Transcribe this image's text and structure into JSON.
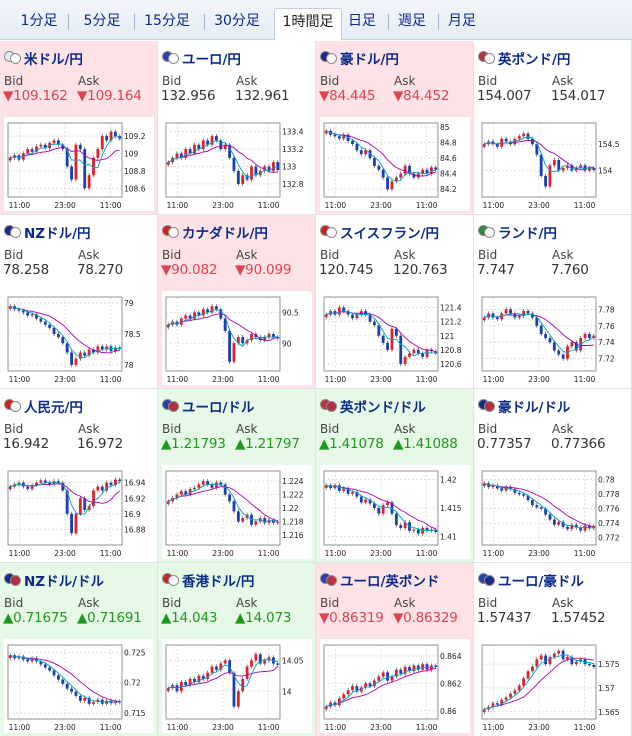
{
  "tabs": [
    {
      "label": "1分足",
      "active": false
    },
    {
      "label": "5分足",
      "active": false
    },
    {
      "label": "15分足",
      "active": false
    },
    {
      "label": "30分足",
      "active": false
    },
    {
      "label": "1時間足",
      "active": true
    },
    {
      "label": "日足",
      "active": false
    },
    {
      "label": "週足",
      "active": false
    },
    {
      "label": "月足",
      "active": false
    }
  ],
  "bid_label": "Bid",
  "ask_label": "Ask",
  "colors": {
    "down_bg": "#fde3e6",
    "up_bg": "#e6f8e6",
    "down_text": "#e0434f",
    "up_text": "#1d9a1d",
    "link": "#0a2a8a",
    "ma_long": "#b000b0",
    "ma_short": "#00a0c8",
    "candle_up": "#e0202a",
    "candle_down": "#1a3fb0"
  },
  "x_ticks": [
    "11:00",
    "23:00",
    "11:00"
  ],
  "pairs": [
    {
      "name": "米ドル/円",
      "flags": [
        "#e8e8f8",
        "#ffffff"
      ],
      "state": "down",
      "bid": "▼109.162",
      "ask": "▼109.164",
      "chart_data": {
        "type": "candlestick",
        "yticks": [
          "109.2",
          "109",
          "108.8",
          "108.6"
        ],
        "ylim": [
          108.5,
          109.35
        ],
        "series": [
          108.95,
          108.98,
          108.93,
          109.0,
          109.05,
          109.02,
          109.08,
          109.1,
          109.06,
          109.12,
          109.15,
          109.1,
          109.05,
          108.85,
          108.7,
          109.1,
          109.05,
          108.6,
          108.75,
          108.95,
          109.05,
          109.2,
          109.15,
          109.25,
          109.2,
          109.17
        ]
      }
    },
    {
      "name": "ユーロ/円",
      "flags": [
        "#2a3fb0",
        "#ffffff"
      ],
      "state": "neutral",
      "bid": "132.956",
      "ask": "132.961",
      "chart_data": {
        "type": "candlestick",
        "yticks": [
          "133.4",
          "133.2",
          "133",
          "132.8"
        ],
        "ylim": [
          132.65,
          133.5
        ],
        "series": [
          133.05,
          133.1,
          133.15,
          133.1,
          133.2,
          133.15,
          133.25,
          133.2,
          133.3,
          133.25,
          133.35,
          133.3,
          133.2,
          133.25,
          133.1,
          132.95,
          132.8,
          132.9,
          132.85,
          133.0,
          132.9,
          132.95,
          133.0,
          132.95,
          133.05,
          132.96
        ]
      }
    },
    {
      "name": "豪ドル/円",
      "flags": [
        "#1a2a8a",
        "#ffffff"
      ],
      "state": "down",
      "bid": "▼84.445",
      "ask": "▼84.452",
      "chart_data": {
        "type": "candlestick",
        "yticks": [
          "85",
          "84.8",
          "84.6",
          "84.4",
          "84.2"
        ],
        "ylim": [
          84.1,
          85.05
        ],
        "series": [
          84.95,
          84.9,
          84.88,
          84.85,
          84.9,
          84.82,
          84.78,
          84.7,
          84.65,
          84.7,
          84.6,
          84.5,
          84.45,
          84.35,
          84.2,
          84.3,
          84.35,
          84.4,
          84.5,
          84.4,
          84.35,
          84.4,
          84.45,
          84.4,
          84.48,
          84.45
        ]
      }
    },
    {
      "name": "英ポンド/円",
      "flags": [
        "#c03040",
        "#ffffff"
      ],
      "state": "neutral",
      "bid": "154.007",
      "ask": "154.017",
      "chart_data": {
        "type": "candlestick",
        "yticks": [
          "154.5",
          "154"
        ],
        "ylim": [
          153.5,
          154.9
        ],
        "series": [
          154.5,
          154.55,
          154.5,
          154.45,
          154.6,
          154.55,
          154.5,
          154.6,
          154.65,
          154.7,
          154.6,
          154.5,
          154.3,
          153.9,
          153.7,
          154.1,
          154.2,
          154.0,
          154.05,
          154.1,
          154.0,
          154.05,
          154.1,
          154.0,
          154.05,
          154.01
        ]
      }
    },
    {
      "name": "NZドル/円",
      "flags": [
        "#1a2a8a",
        "#ffffff"
      ],
      "state": "neutral",
      "bid": "78.258",
      "ask": "78.270",
      "chart_data": {
        "type": "candlestick",
        "yticks": [
          "79",
          "78.5",
          "78"
        ],
        "ylim": [
          77.9,
          79.1
        ],
        "series": [
          78.95,
          78.9,
          78.88,
          78.85,
          78.8,
          78.82,
          78.75,
          78.7,
          78.65,
          78.6,
          78.5,
          78.45,
          78.35,
          78.2,
          78.0,
          78.1,
          78.2,
          78.15,
          78.25,
          78.2,
          78.3,
          78.25,
          78.3,
          78.22,
          78.28,
          78.26
        ]
      }
    },
    {
      "name": "カナダドル/円",
      "flags": [
        "#d02020",
        "#ffffff"
      ],
      "state": "down",
      "bid": "▼90.082",
      "ask": "▼90.099",
      "chart_data": {
        "type": "candlestick",
        "yticks": [
          "90.5",
          "90"
        ],
        "ylim": [
          89.55,
          90.75
        ],
        "series": [
          90.3,
          90.35,
          90.3,
          90.4,
          90.45,
          90.4,
          90.5,
          90.45,
          90.55,
          90.5,
          90.6,
          90.55,
          90.4,
          90.2,
          89.7,
          90.0,
          90.1,
          90.0,
          90.05,
          90.15,
          90.1,
          90.05,
          90.1,
          90.15,
          90.1,
          90.08
        ]
      }
    },
    {
      "name": "スイスフラン/円",
      "flags": [
        "#d02020",
        "#ffffff"
      ],
      "state": "neutral",
      "bid": "120.745",
      "ask": "120.763",
      "chart_data": {
        "type": "candlestick",
        "yticks": [
          "121.4",
          "121.2",
          "121",
          "120.8",
          "120.6"
        ],
        "ylim": [
          120.5,
          121.55
        ],
        "series": [
          121.3,
          121.35,
          121.3,
          121.4,
          121.35,
          121.3,
          121.25,
          121.3,
          121.35,
          121.3,
          121.2,
          121.15,
          121.0,
          120.9,
          120.8,
          121.1,
          121.0,
          120.6,
          120.7,
          120.75,
          120.8,
          120.75,
          120.7,
          120.8,
          120.78,
          120.75
        ]
      }
    },
    {
      "name": "ランド/円",
      "flags": [
        "#2a8a3a",
        "#ffffff"
      ],
      "state": "neutral",
      "bid": "7.747",
      "ask": "7.760",
      "chart_data": {
        "type": "candlestick",
        "yticks": [
          "7.78",
          "7.76",
          "7.74",
          "7.72"
        ],
        "ylim": [
          7.705,
          7.795
        ],
        "series": [
          7.77,
          7.775,
          7.77,
          7.768,
          7.775,
          7.78,
          7.775,
          7.77,
          7.772,
          7.778,
          7.775,
          7.77,
          7.76,
          7.75,
          7.745,
          7.74,
          7.73,
          7.725,
          7.72,
          7.735,
          7.74,
          7.73,
          7.745,
          7.75,
          7.745,
          7.748
        ]
      }
    },
    {
      "name": "人民元/円",
      "flags": [
        "#d02020",
        "#ffffff"
      ],
      "state": "neutral",
      "bid": "16.942",
      "ask": "16.972",
      "chart_data": {
        "type": "candlestick",
        "yticks": [
          "16.94",
          "16.92",
          "16.9",
          "16.88"
        ],
        "ylim": [
          16.86,
          16.955
        ],
        "series": [
          16.935,
          16.938,
          16.94,
          16.935,
          16.932,
          16.937,
          16.94,
          16.943,
          16.94,
          16.938,
          16.942,
          16.94,
          16.93,
          16.9,
          16.875,
          16.9,
          16.92,
          16.905,
          16.91,
          16.93,
          16.935,
          16.93,
          16.94,
          16.937,
          16.944,
          16.942
        ]
      }
    },
    {
      "name": "ユーロ/ドル",
      "flags": [
        "#2a3fb0",
        "#b03040"
      ],
      "state": "up",
      "bid": "▲1.21793",
      "ask": "▲1.21797",
      "chart_data": {
        "type": "candlestick",
        "yticks": [
          "1.224",
          "1.222",
          "1.22",
          "1.218",
          "1.216"
        ],
        "ylim": [
          1.2145,
          1.2255
        ],
        "series": [
          1.221,
          1.2215,
          1.222,
          1.2225,
          1.222,
          1.2228,
          1.223,
          1.2235,
          1.224,
          1.2235,
          1.223,
          1.2238,
          1.2235,
          1.222,
          1.221,
          1.2195,
          1.218,
          1.2185,
          1.219,
          1.2175,
          1.218,
          1.2185,
          1.2178,
          1.2182,
          1.2178,
          1.2179
        ]
      }
    },
    {
      "name": "英ポンド/ドル",
      "flags": [
        "#c03040",
        "#b03040"
      ],
      "state": "up",
      "bid": "▲1.41078",
      "ask": "▲1.41088",
      "chart_data": {
        "type": "candlestick",
        "yticks": [
          "1.42",
          "1.415",
          "1.41"
        ],
        "ylim": [
          1.4085,
          1.4215
        ],
        "series": [
          1.419,
          1.4185,
          1.419,
          1.418,
          1.4185,
          1.4175,
          1.4178,
          1.417,
          1.416,
          1.4165,
          1.4158,
          1.415,
          1.414,
          1.4155,
          1.416,
          1.414,
          1.412,
          1.4115,
          1.4125,
          1.411,
          1.4112,
          1.4105,
          1.4115,
          1.411,
          1.4112,
          1.4108
        ]
      }
    },
    {
      "name": "豪ドル/ドル",
      "flags": [
        "#1a2a8a",
        "#b03040"
      ],
      "state": "neutral",
      "bid": "0.77357",
      "ask": "0.77366",
      "chart_data": {
        "type": "candlestick",
        "yticks": [
          "0.78",
          "0.778",
          "0.776",
          "0.774",
          "0.772"
        ],
        "ylim": [
          0.771,
          0.7812
        ],
        "series": [
          0.7795,
          0.779,
          0.7792,
          0.7788,
          0.7785,
          0.779,
          0.7787,
          0.7782,
          0.778,
          0.7778,
          0.7772,
          0.7765,
          0.7762,
          0.776,
          0.7752,
          0.7745,
          0.7738,
          0.7742,
          0.7735,
          0.7732,
          0.7738,
          0.7734,
          0.773,
          0.7737,
          0.7733,
          0.7736
        ]
      }
    },
    {
      "name": "NZドル/ドル",
      "flags": [
        "#1a2a8a",
        "#b03040"
      ],
      "state": "up",
      "bid": "▲0.71675",
      "ask": "▲0.71691",
      "chart_data": {
        "type": "candlestick",
        "yticks": [
          "0.725",
          "0.72",
          "0.715"
        ],
        "ylim": [
          0.714,
          0.7262
        ],
        "series": [
          0.7245,
          0.724,
          0.7243,
          0.7238,
          0.7235,
          0.724,
          0.7235,
          0.723,
          0.7225,
          0.722,
          0.7212,
          0.7205,
          0.7198,
          0.719,
          0.7185,
          0.7178,
          0.717,
          0.7175,
          0.7165,
          0.7168,
          0.7172,
          0.7165,
          0.717,
          0.7166,
          0.7169,
          0.7168
        ]
      }
    },
    {
      "name": "香港ドル/円",
      "flags": [
        "#d02020",
        "#ffffff"
      ],
      "state": "up",
      "bid": "▲14.043",
      "ask": "▲14.073",
      "chart_data": {
        "type": "candlestick",
        "yticks": [
          "14.05",
          "14"
        ],
        "ylim": [
          13.955,
          14.075
        ],
        "series": [
          14.005,
          14.01,
          14.0,
          14.015,
          14.01,
          14.02,
          14.015,
          14.025,
          14.02,
          14.03,
          14.04,
          14.035,
          14.045,
          14.05,
          14.03,
          13.975,
          14.0,
          14.02,
          14.04,
          14.05,
          14.06,
          14.045,
          14.05,
          14.055,
          14.045,
          14.043
        ]
      }
    },
    {
      "name": "ユーロ/英ポンド",
      "flags": [
        "#2a3fb0",
        "#c03040"
      ],
      "state": "down",
      "bid": "▼0.86319",
      "ask": "▼0.86329",
      "chart_data": {
        "type": "candlestick",
        "yticks": [
          "0.864",
          "0.862",
          "0.86"
        ],
        "ylim": [
          0.8594,
          0.8648
        ],
        "series": [
          0.8603,
          0.8606,
          0.8604,
          0.8609,
          0.8612,
          0.8615,
          0.8618,
          0.8614,
          0.8617,
          0.862,
          0.8618,
          0.8622,
          0.8625,
          0.8628,
          0.8622,
          0.8625,
          0.863,
          0.8627,
          0.8632,
          0.8629,
          0.8633,
          0.863,
          0.8634,
          0.863,
          0.8633,
          0.8632
        ]
      }
    },
    {
      "name": "ユーロ/豪ドル",
      "flags": [
        "#2a3fb0",
        "#1a2a8a"
      ],
      "state": "neutral",
      "bid": "1.57437",
      "ask": "1.57452",
      "chart_data": {
        "type": "candlestick",
        "yticks": [
          "1.575",
          "1.57",
          "1.565"
        ],
        "ylim": [
          1.5635,
          1.579
        ],
        "series": [
          1.5655,
          1.566,
          1.5668,
          1.5665,
          1.5675,
          1.568,
          1.5688,
          1.5695,
          1.5705,
          1.572,
          1.5735,
          1.5745,
          1.576,
          1.5768,
          1.575,
          1.5765,
          1.5772,
          1.5778,
          1.576,
          1.5765,
          1.575,
          1.5755,
          1.576,
          1.575,
          1.5748,
          1.5744
        ]
      }
    }
  ]
}
